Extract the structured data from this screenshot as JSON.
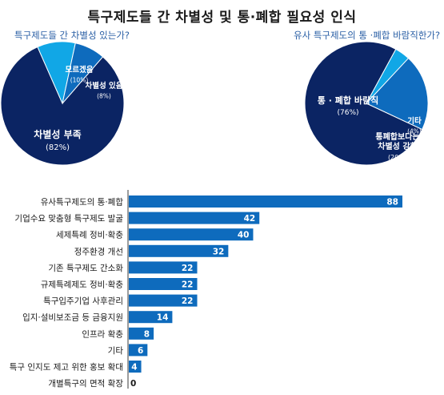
{
  "title": "특구제도들 간 차별성 및 통·폐합 필요성 인식",
  "colors": {
    "navy": "#0b2463",
    "blue": "#0e6bbd",
    "light": "#11a7e6",
    "subtitle": "#2a5fa5"
  },
  "chart_data": [
    {
      "type": "pie",
      "title": "특구제도들 간 차별성 있는가?",
      "slices": [
        {
          "label": "차별성 부족",
          "pct": "(82%)",
          "value": 82,
          "color": "#0b2463"
        },
        {
          "label": "모르겠음",
          "pct": "(10%)",
          "value": 10,
          "color": "#11a7e6"
        },
        {
          "label": "차별성 있음",
          "pct": "(8%)",
          "value": 8,
          "color": "#0e6bbd"
        }
      ]
    },
    {
      "type": "pie",
      "title": "유사 특구제도의 통 ·폐합 바람직한가?",
      "slices": [
        {
          "label": "통 · 폐합 바람직",
          "pct": "(76%)",
          "value": 76,
          "color": "#0b2463"
        },
        {
          "label": "기타",
          "pct": "(4%)",
          "value": 4,
          "color": "#11a7e6"
        },
        {
          "label": "통폐합보다는 차별성 강화",
          "label_lines": [
            "통폐합보다는",
            "차별성 강화"
          ],
          "pct": "(20%)",
          "value": 20,
          "color": "#0e6bbd"
        }
      ]
    },
    {
      "type": "bar",
      "orientation": "horizontal",
      "categories": [
        "유사특구제도의 통·폐합",
        "기업수요 맞춤형 특구제도 발굴",
        "세제특례 정비·확충",
        "정주환경 개선",
        "기존 특구제도 간소화",
        "규제특례제도 정비·확충",
        "특구입주기업 사후관리",
        "입지·설비보조금 등 금융지원",
        "인프라 확충",
        "기타",
        "특구 인지도 제고 위한 홍보 확대",
        "개별특구의 면적 확장"
      ],
      "values": [
        88,
        42,
        40,
        32,
        22,
        22,
        22,
        14,
        8,
        6,
        4,
        0
      ],
      "xlim": [
        0,
        100
      ],
      "color": "#0e6bbd"
    }
  ]
}
